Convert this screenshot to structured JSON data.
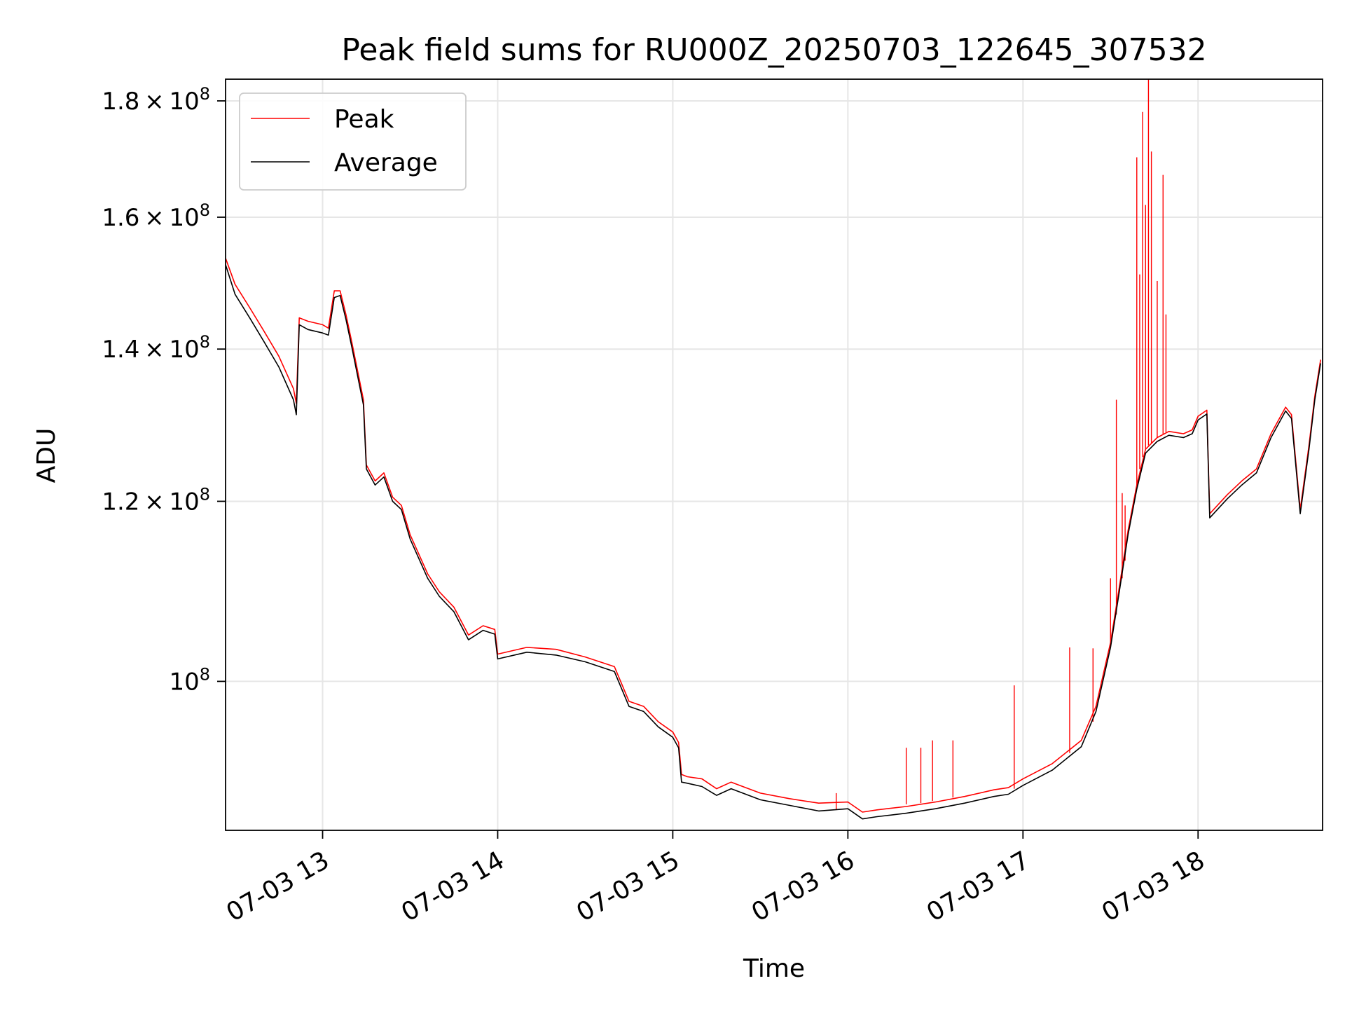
{
  "chart_data": {
    "type": "line",
    "title": "Peak field sums for RU000Z_20250703_122645_307532",
    "xlabel": "Time",
    "ylabel": "ADU",
    "yscale": "log",
    "ylim": [
      86000000,
      184000000
    ],
    "xlim": [
      "2025-07-03 12:26:45",
      "2025-07-03 18:42:40"
    ],
    "grid": true,
    "legend_position": "top-left",
    "x_ticks": [
      {
        "x": "2025-07-03 13:00",
        "label": "07-03 13"
      },
      {
        "x": "2025-07-03 14:00",
        "label": "07-03 14"
      },
      {
        "x": "2025-07-03 15:00",
        "label": "07-03 15"
      },
      {
        "x": "2025-07-03 16:00",
        "label": "07-03 16"
      },
      {
        "x": "2025-07-03 17:00",
        "label": "07-03 17"
      },
      {
        "x": "2025-07-03 18:00",
        "label": "07-03 18"
      }
    ],
    "y_ticks": [
      {
        "value": 100000000,
        "mantissa": "",
        "exponent": "8",
        "base": "10"
      },
      {
        "value": 120000000,
        "mantissa": "1.2",
        "exponent": "8",
        "base": "10"
      },
      {
        "value": 140000000,
        "mantissa": "1.4",
        "exponent": "8",
        "base": "10"
      },
      {
        "value": 160000000,
        "mantissa": "1.6",
        "exponent": "8",
        "base": "10"
      },
      {
        "value": 180000000,
        "mantissa": "1.8",
        "exponent": "8",
        "base": "10"
      }
    ],
    "series": [
      {
        "name": "Peak",
        "color": "#ff0000",
        "points": [
          [
            "2025-07-03 12:26:45",
            153500000
          ],
          [
            "2025-07-03 12:30",
            149500000
          ],
          [
            "2025-07-03 12:35",
            146000000
          ],
          [
            "2025-07-03 12:40",
            142500000
          ],
          [
            "2025-07-03 12:45",
            139000000
          ],
          [
            "2025-07-03 12:50",
            134500000
          ],
          [
            "2025-07-03 12:51",
            132500000
          ],
          [
            "2025-07-03 12:52",
            144500000
          ],
          [
            "2025-07-03 12:55",
            144000000
          ],
          [
            "2025-07-03 13:00",
            143500000
          ],
          [
            "2025-07-03 13:02",
            143000000
          ],
          [
            "2025-07-03 13:04",
            148500000
          ],
          [
            "2025-07-03 13:06",
            148500000
          ],
          [
            "2025-07-03 13:08",
            145000000
          ],
          [
            "2025-07-03 13:10",
            141000000
          ],
          [
            "2025-07-03 13:14",
            133000000
          ],
          [
            "2025-07-03 13:15",
            124500000
          ],
          [
            "2025-07-03 13:18",
            122500000
          ],
          [
            "2025-07-03 13:21",
            123500000
          ],
          [
            "2025-07-03 13:24",
            120500000
          ],
          [
            "2025-07-03 13:27",
            119500000
          ],
          [
            "2025-07-03 13:30",
            116000000
          ],
          [
            "2025-07-03 13:36",
            111500000
          ],
          [
            "2025-07-03 13:40",
            109500000
          ],
          [
            "2025-07-03 13:45",
            107800000
          ],
          [
            "2025-07-03 13:50",
            104800000
          ],
          [
            "2025-07-03 13:55",
            105800000
          ],
          [
            "2025-07-03 13:59",
            105400000
          ],
          [
            "2025-07-03 14:00",
            102800000
          ],
          [
            "2025-07-03 14:10",
            103500000
          ],
          [
            "2025-07-03 14:20",
            103300000
          ],
          [
            "2025-07-03 14:30",
            102500000
          ],
          [
            "2025-07-03 14:40",
            101500000
          ],
          [
            "2025-07-03 14:45",
            98000000
          ],
          [
            "2025-07-03 14:50",
            97500000
          ],
          [
            "2025-07-03 14:55",
            96000000
          ],
          [
            "2025-07-03 15:00",
            95000000
          ],
          [
            "2025-07-03 15:02",
            94000000
          ],
          [
            "2025-07-03 15:03",
            91000000
          ],
          [
            "2025-07-03 15:05",
            90800000
          ],
          [
            "2025-07-03 15:10",
            90600000
          ],
          [
            "2025-07-03 15:15",
            89700000
          ],
          [
            "2025-07-03 15:20",
            90300000
          ],
          [
            "2025-07-03 15:25",
            89800000
          ],
          [
            "2025-07-03 15:30",
            89300000
          ],
          [
            "2025-07-03 15:40",
            88800000
          ],
          [
            "2025-07-03 15:50",
            88400000
          ],
          [
            "2025-07-03 16:00",
            88500000
          ],
          [
            "2025-07-03 16:05",
            87600000
          ],
          [
            "2025-07-03 16:10",
            87800000
          ],
          [
            "2025-07-03 16:20",
            88100000
          ],
          [
            "2025-07-03 16:30",
            88500000
          ],
          [
            "2025-07-03 16:40",
            89000000
          ],
          [
            "2025-07-03 16:50",
            89600000
          ],
          [
            "2025-07-03 16:55",
            89800000
          ],
          [
            "2025-07-03 17:00",
            90600000
          ],
          [
            "2025-07-03 17:10",
            92000000
          ],
          [
            "2025-07-03 17:20",
            94200000
          ],
          [
            "2025-07-03 17:25",
            97500000
          ],
          [
            "2025-07-03 17:30",
            104000000
          ],
          [
            "2025-07-03 17:33",
            110000000
          ],
          [
            "2025-07-03 17:36",
            116500000
          ],
          [
            "2025-07-03 17:39",
            122000000
          ],
          [
            "2025-07-03 17:42",
            126500000
          ],
          [
            "2025-07-03 17:46",
            128000000
          ],
          [
            "2025-07-03 17:50",
            128800000
          ],
          [
            "2025-07-03 17:55",
            128500000
          ],
          [
            "2025-07-03 17:58",
            129000000
          ],
          [
            "2025-07-03 18:00",
            130800000
          ],
          [
            "2025-07-03 18:03",
            131600000
          ],
          [
            "2025-07-03 18:04",
            118500000
          ],
          [
            "2025-07-03 18:10",
            120800000
          ],
          [
            "2025-07-03 18:15",
            122500000
          ],
          [
            "2025-07-03 18:20",
            124000000
          ],
          [
            "2025-07-03 18:25",
            128500000
          ],
          [
            "2025-07-03 18:30",
            132000000
          ],
          [
            "2025-07-03 18:32",
            131000000
          ],
          [
            "2025-07-03 18:35",
            119000000
          ],
          [
            "2025-07-03 18:38",
            127000000
          ],
          [
            "2025-07-03 18:40",
            133500000
          ],
          [
            "2025-07-03 18:42",
            138500000
          ]
        ],
        "spikes": [
          [
            "2025-07-03 15:56",
            87800000,
            89300000
          ],
          [
            "2025-07-03 16:20",
            88300000,
            93500000
          ],
          [
            "2025-07-03 16:25",
            88400000,
            93500000
          ],
          [
            "2025-07-03 16:29",
            88600000,
            94200000
          ],
          [
            "2025-07-03 16:36",
            88900000,
            94200000
          ],
          [
            "2025-07-03 16:57",
            89700000,
            99600000
          ],
          [
            "2025-07-03 17:16",
            93000000,
            103500000
          ],
          [
            "2025-07-03 17:24",
            96000000,
            103400000
          ],
          [
            "2025-07-03 17:30",
            104000000,
            111000000
          ],
          [
            "2025-07-03 17:32",
            107000000,
            133000000
          ],
          [
            "2025-07-03 17:34",
            111000000,
            121000000
          ],
          [
            "2025-07-03 17:35",
            113000000,
            119500000
          ],
          [
            "2025-07-03 17:39",
            122000000,
            170000000
          ],
          [
            "2025-07-03 17:40",
            124000000,
            151000000
          ],
          [
            "2025-07-03 17:41",
            125500000,
            178000000
          ],
          [
            "2025-07-03 17:42",
            126500000,
            162000000
          ],
          [
            "2025-07-03 17:43",
            127000000,
            184000000
          ],
          [
            "2025-07-03 17:44",
            127300000,
            171000000
          ],
          [
            "2025-07-03 17:46",
            128000000,
            150000000
          ],
          [
            "2025-07-03 17:48",
            128500000,
            167000000
          ],
          [
            "2025-07-03 17:49",
            128700000,
            145000000
          ]
        ]
      },
      {
        "name": "Average",
        "color": "#000000",
        "points": [
          [
            "2025-07-03 12:26:45",
            152500000
          ],
          [
            "2025-07-03 12:30",
            148000000
          ],
          [
            "2025-07-03 12:35",
            144500000
          ],
          [
            "2025-07-03 12:40",
            141000000
          ],
          [
            "2025-07-03 12:45",
            137500000
          ],
          [
            "2025-07-03 12:50",
            133000000
          ],
          [
            "2025-07-03 12:51",
            131000000
          ],
          [
            "2025-07-03 12:52",
            143500000
          ],
          [
            "2025-07-03 12:55",
            142800000
          ],
          [
            "2025-07-03 13:00",
            142300000
          ],
          [
            "2025-07-03 13:02",
            142000000
          ],
          [
            "2025-07-03 13:04",
            147500000
          ],
          [
            "2025-07-03 13:06",
            147800000
          ],
          [
            "2025-07-03 13:08",
            144300000
          ],
          [
            "2025-07-03 13:10",
            140300000
          ],
          [
            "2025-07-03 13:14",
            132300000
          ],
          [
            "2025-07-03 13:15",
            124000000
          ],
          [
            "2025-07-03 13:18",
            122000000
          ],
          [
            "2025-07-03 13:21",
            123000000
          ],
          [
            "2025-07-03 13:24",
            120000000
          ],
          [
            "2025-07-03 13:27",
            119000000
          ],
          [
            "2025-07-03 13:30",
            115500000
          ],
          [
            "2025-07-03 13:36",
            111000000
          ],
          [
            "2025-07-03 13:40",
            109000000
          ],
          [
            "2025-07-03 13:45",
            107300000
          ],
          [
            "2025-07-03 13:50",
            104300000
          ],
          [
            "2025-07-03 13:55",
            105300000
          ],
          [
            "2025-07-03 13:59",
            104900000
          ],
          [
            "2025-07-03 14:00",
            102300000
          ],
          [
            "2025-07-03 14:10",
            103000000
          ],
          [
            "2025-07-03 14:20",
            102700000
          ],
          [
            "2025-07-03 14:30",
            102000000
          ],
          [
            "2025-07-03 14:40",
            101000000
          ],
          [
            "2025-07-03 14:45",
            97500000
          ],
          [
            "2025-07-03 14:50",
            97000000
          ],
          [
            "2025-07-03 14:55",
            95500000
          ],
          [
            "2025-07-03 15:00",
            94500000
          ],
          [
            "2025-07-03 15:02",
            93500000
          ],
          [
            "2025-07-03 15:03",
            90300000
          ],
          [
            "2025-07-03 15:05",
            90200000
          ],
          [
            "2025-07-03 15:10",
            89900000
          ],
          [
            "2025-07-03 15:15",
            89100000
          ],
          [
            "2025-07-03 15:20",
            89700000
          ],
          [
            "2025-07-03 15:25",
            89200000
          ],
          [
            "2025-07-03 15:30",
            88700000
          ],
          [
            "2025-07-03 15:40",
            88200000
          ],
          [
            "2025-07-03 15:50",
            87700000
          ],
          [
            "2025-07-03 16:00",
            87900000
          ],
          [
            "2025-07-03 16:05",
            87000000
          ],
          [
            "2025-07-03 16:10",
            87200000
          ],
          [
            "2025-07-03 16:20",
            87500000
          ],
          [
            "2025-07-03 16:30",
            87900000
          ],
          [
            "2025-07-03 16:40",
            88400000
          ],
          [
            "2025-07-03 16:50",
            89000000
          ],
          [
            "2025-07-03 16:55",
            89200000
          ],
          [
            "2025-07-03 17:00",
            90000000
          ],
          [
            "2025-07-03 17:10",
            91400000
          ],
          [
            "2025-07-03 17:20",
            93600000
          ],
          [
            "2025-07-03 17:25",
            97000000
          ],
          [
            "2025-07-03 17:30",
            103500000
          ],
          [
            "2025-07-03 17:33",
            109500000
          ],
          [
            "2025-07-03 17:36",
            116000000
          ],
          [
            "2025-07-03 17:39",
            121500000
          ],
          [
            "2025-07-03 17:42",
            126000000
          ],
          [
            "2025-07-03 17:46",
            127500000
          ],
          [
            "2025-07-03 17:50",
            128300000
          ],
          [
            "2025-07-03 17:55",
            128000000
          ],
          [
            "2025-07-03 17:58",
            128500000
          ],
          [
            "2025-07-03 18:00",
            130300000
          ],
          [
            "2025-07-03 18:03",
            131100000
          ],
          [
            "2025-07-03 18:04",
            118000000
          ],
          [
            "2025-07-03 18:10",
            120300000
          ],
          [
            "2025-07-03 18:15",
            122000000
          ],
          [
            "2025-07-03 18:20",
            123500000
          ],
          [
            "2025-07-03 18:25",
            128000000
          ],
          [
            "2025-07-03 18:30",
            131500000
          ],
          [
            "2025-07-03 18:32",
            130500000
          ],
          [
            "2025-07-03 18:35",
            118500000
          ],
          [
            "2025-07-03 18:38",
            126500000
          ],
          [
            "2025-07-03 18:40",
            133000000
          ],
          [
            "2025-07-03 18:42",
            138000000
          ]
        ]
      }
    ]
  }
}
